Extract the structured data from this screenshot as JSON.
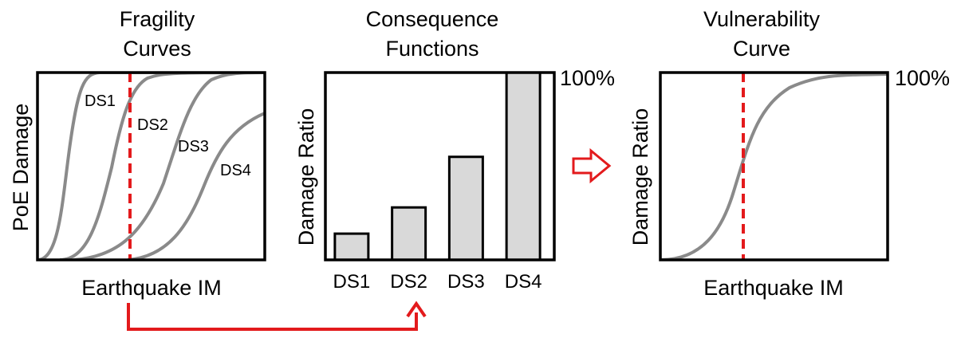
{
  "fragility": {
    "title_line1": "Fragility",
    "title_line2": "Curves",
    "ylabel": "PoE Damage",
    "xlabel": "Earthquake IM",
    "curve_labels": [
      "DS1",
      "DS2",
      "DS3",
      "DS4"
    ]
  },
  "consequence": {
    "title_line1": "Consequence",
    "title_line2": "Functions",
    "ylabel": "Damage Ratio",
    "top_label": "100%",
    "categories": [
      "DS1",
      "DS2",
      "DS3",
      "DS4"
    ],
    "values": [
      0.14,
      0.28,
      0.55,
      1.0
    ]
  },
  "vulnerability": {
    "title_line1": "Vulnerability",
    "title_line2": "Curve",
    "ylabel": "Damage Ratio",
    "xlabel": "Earthquake IM",
    "top_label": "100%"
  },
  "colors": {
    "curve": "#8a8a8a",
    "bar_fill": "#d9d9d9",
    "highlight": "#e31a1c",
    "frame": "#000000"
  }
}
